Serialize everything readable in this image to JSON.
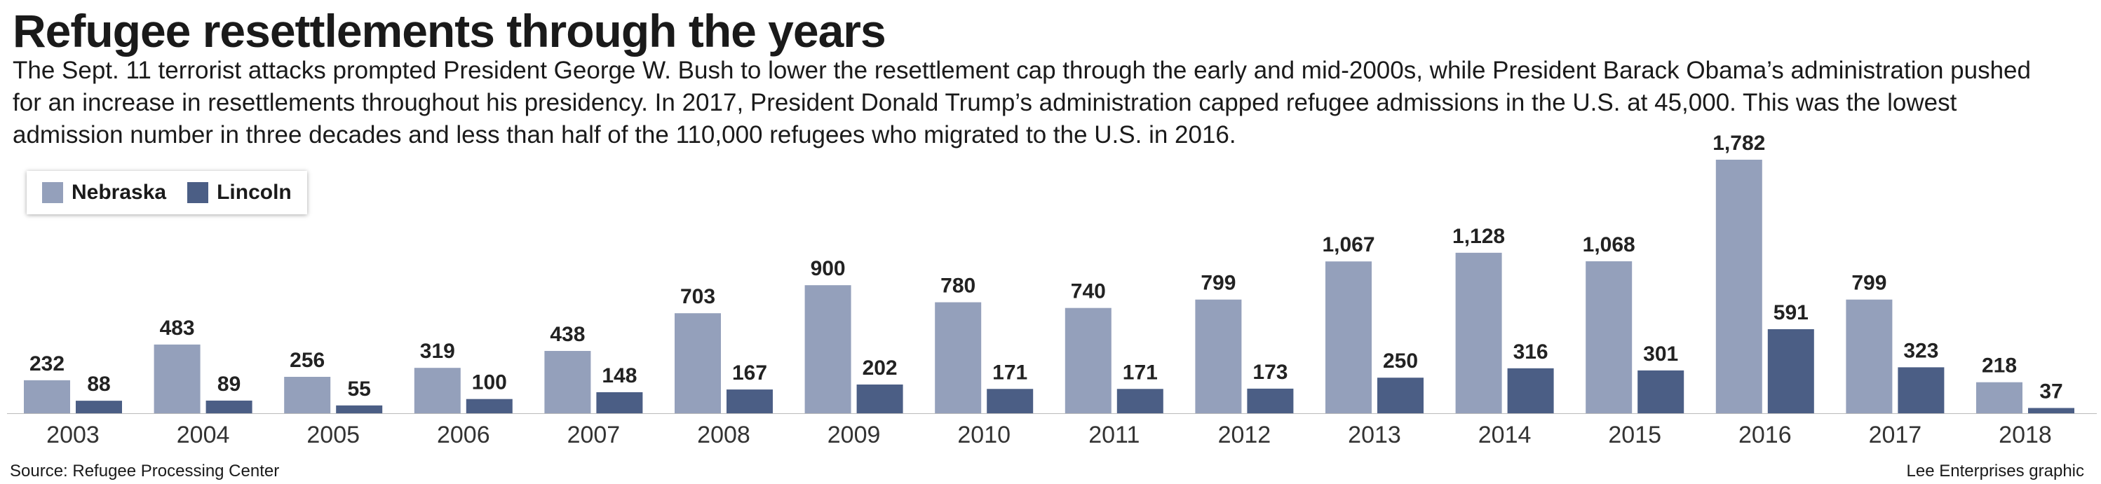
{
  "chart_data": {
    "type": "bar",
    "title": "Refugee resettlements through the years",
    "subtitle": "The Sept. 11 terrorist attacks prompted President George W. Bush to lower the resettlement cap through the early and mid-2000s, while President Barack Obama’s administration pushed for an increase in resettlements throughout his presidency. In 2017, President Donald Trump’s administration capped refugee admissions in the U.S. at 45,000. This was the lowest admission number in three decades and less than half of the 110,000 refugees who migrated to the U.S. in 2016.",
    "categories": [
      "2003",
      "2004",
      "2005",
      "2006",
      "2007",
      "2008",
      "2009",
      "2010",
      "2011",
      "2012",
      "2013",
      "2014",
      "2015",
      "2016",
      "2017",
      "2018"
    ],
    "series": [
      {
        "name": "Nebraska",
        "color": "#94a0bb",
        "values": [
          232,
          483,
          256,
          319,
          438,
          703,
          900,
          780,
          740,
          799,
          1067,
          1128,
          1068,
          1782,
          799,
          218
        ],
        "labels": [
          "232",
          "483",
          "256",
          "319",
          "438",
          "703",
          "900",
          "780",
          "740",
          "799",
          "1,067",
          "1,128",
          "1,068",
          "1,782",
          "799",
          "218"
        ]
      },
      {
        "name": "Lincoln",
        "color": "#4b5e85",
        "values": [
          88,
          89,
          55,
          100,
          148,
          167,
          202,
          171,
          171,
          173,
          250,
          316,
          301,
          591,
          323,
          37
        ],
        "labels": [
          "88",
          "89",
          "55",
          "100",
          "148",
          "167",
          "202",
          "171",
          "171",
          "173",
          "250",
          "316",
          "301",
          "591",
          "323",
          "37"
        ]
      }
    ],
    "ylim": [
      0,
      1782
    ],
    "xlabel": "",
    "ylabel": "",
    "grid": false,
    "legend_position": "top-left"
  },
  "footer": {
    "source": "Source: Refugee Processing Center",
    "credit": "Lee Enterprises graphic"
  }
}
